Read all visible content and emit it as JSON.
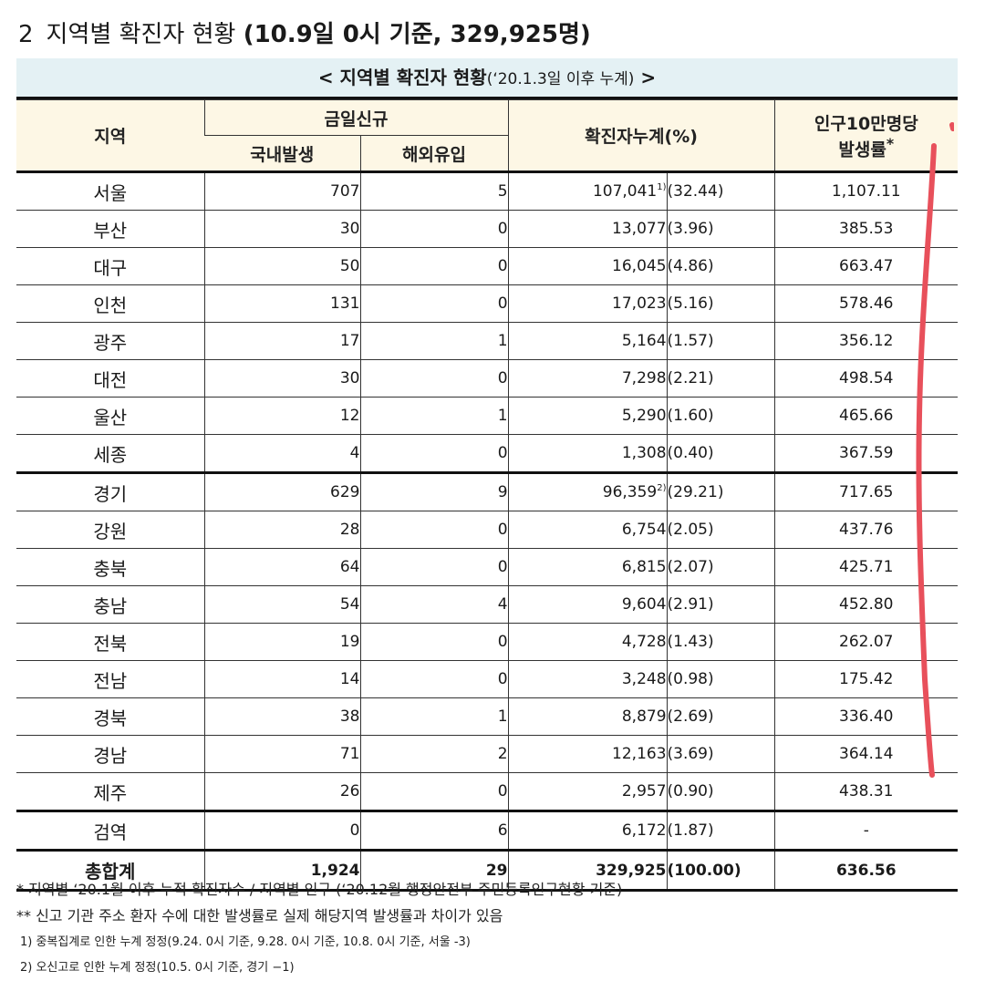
{
  "heading": {
    "number": "2",
    "title": "지역별 확진자 현황",
    "detail": "(10.9일 0시 기준, 329,925명)"
  },
  "table_title": {
    "main": "< 지역별 확진자 현황",
    "sub": "(‘20.1.3일 이후 누계)",
    "end": " >"
  },
  "columns": {
    "region": "지역",
    "today_new": "금일신규",
    "domestic": "국내발생",
    "overseas": "해외유입",
    "cumulative": "확진자누계",
    "percent": "(%)",
    "rate_line1": "인구10만명당",
    "rate_line2": "발생률",
    "rate_mark": "*"
  },
  "rows": [
    {
      "region": "서울",
      "domestic": "707",
      "overseas": "5",
      "cumulative": "107,041",
      "note": "1)",
      "percent": "(32.44)",
      "rate": "1,107.11"
    },
    {
      "region": "부산",
      "domestic": "30",
      "overseas": "0",
      "cumulative": "13,077",
      "note": "",
      "percent": "(3.96)",
      "rate": "385.53"
    },
    {
      "region": "대구",
      "domestic": "50",
      "overseas": "0",
      "cumulative": "16,045",
      "note": "",
      "percent": "(4.86)",
      "rate": "663.47"
    },
    {
      "region": "인천",
      "domestic": "131",
      "overseas": "0",
      "cumulative": "17,023",
      "note": "",
      "percent": "(5.16)",
      "rate": "578.46"
    },
    {
      "region": "광주",
      "domestic": "17",
      "overseas": "1",
      "cumulative": "5,164",
      "note": "",
      "percent": "(1.57)",
      "rate": "356.12"
    },
    {
      "region": "대전",
      "domestic": "30",
      "overseas": "0",
      "cumulative": "7,298",
      "note": "",
      "percent": "(2.21)",
      "rate": "498.54"
    },
    {
      "region": "울산",
      "domestic": "12",
      "overseas": "1",
      "cumulative": "5,290",
      "note": "",
      "percent": "(1.60)",
      "rate": "465.66"
    },
    {
      "region": "세종",
      "domestic": "4",
      "overseas": "0",
      "cumulative": "1,308",
      "note": "",
      "percent": "(0.40)",
      "rate": "367.59"
    },
    {
      "region": "경기",
      "domestic": "629",
      "overseas": "9",
      "cumulative": "96,359",
      "note": "2)",
      "percent": "(29.21)",
      "rate": "717.65"
    },
    {
      "region": "강원",
      "domestic": "28",
      "overseas": "0",
      "cumulative": "6,754",
      "note": "",
      "percent": "(2.05)",
      "rate": "437.76"
    },
    {
      "region": "충북",
      "domestic": "64",
      "overseas": "0",
      "cumulative": "6,815",
      "note": "",
      "percent": "(2.07)",
      "rate": "425.71"
    },
    {
      "region": "충남",
      "domestic": "54",
      "overseas": "4",
      "cumulative": "9,604",
      "note": "",
      "percent": "(2.91)",
      "rate": "452.80"
    },
    {
      "region": "전북",
      "domestic": "19",
      "overseas": "0",
      "cumulative": "4,728",
      "note": "",
      "percent": "(1.43)",
      "rate": "262.07"
    },
    {
      "region": "전남",
      "domestic": "14",
      "overseas": "0",
      "cumulative": "3,248",
      "note": "",
      "percent": "(0.98)",
      "rate": "175.42"
    },
    {
      "region": "경북",
      "domestic": "38",
      "overseas": "1",
      "cumulative": "8,879",
      "note": "",
      "percent": "(2.69)",
      "rate": "336.40"
    },
    {
      "region": "경남",
      "domestic": "71",
      "overseas": "2",
      "cumulative": "12,163",
      "note": "",
      "percent": "(3.69)",
      "rate": "364.14"
    },
    {
      "region": "제주",
      "domestic": "26",
      "overseas": "0",
      "cumulative": "2,957",
      "note": "",
      "percent": "(0.90)",
      "rate": "438.31"
    },
    {
      "region": "검역",
      "domestic": "0",
      "overseas": "6",
      "cumulative": "6,172",
      "note": "",
      "percent": "(1.87)",
      "rate": "-"
    }
  ],
  "total": {
    "region": "총합계",
    "domestic": "1,924",
    "overseas": "29",
    "cumulative": "329,925",
    "percent": "(100.00)",
    "rate": "636.56"
  },
  "notes": {
    "n1": "* 지역별 ‘20.1월 이후 누적 확진자수 / 지역별 인구 (‘20.12월 행정안전부 주민등록인구현황 기준)",
    "n2": "** 신고 기관 주소 환자 수에 대한 발생률로 실제 해당지역 발생률과 차이가 있음",
    "n3": "1) 중복집계로 인한 누계 정정(9.24. 0시 기준, 9.28. 0시 기준, 10.8. 0시 기준, 서울 -3)",
    "n4": "2) 오신고로 인한 누계 정정(10.5. 0시 기준, 경기 −1)"
  },
  "colors": {
    "title_bar_bg": "#e4f1f4",
    "header_bg": "#fdf7e5",
    "pen_mark": "#e8505b"
  }
}
